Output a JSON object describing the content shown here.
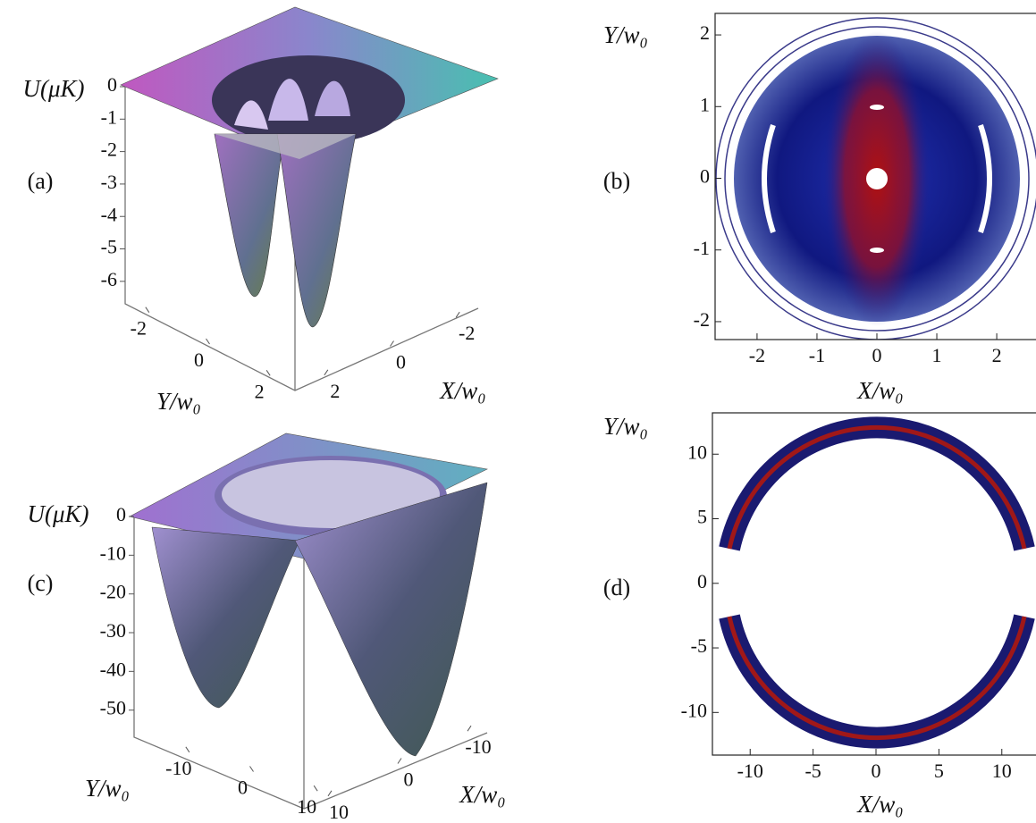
{
  "chart_data": [
    {
      "type": "surface",
      "panel_label": "(a)",
      "z_label": "U(μK)",
      "y_label": "Y/w₀",
      "x_label": "X/w₀",
      "zlim": [
        -6.5,
        0
      ],
      "zticks": [
        0,
        -1,
        -2,
        -3,
        -4,
        -5,
        -6
      ],
      "ylim": [
        -3,
        3
      ],
      "yticks": [
        -2,
        0,
        2
      ],
      "xlim": [
        -3,
        3
      ],
      "xticks": [
        -2,
        0,
        2
      ]
    },
    {
      "type": "contour",
      "panel_label": "(b)",
      "y_label": "Y/w₀",
      "x_label": "X/w₀",
      "xlim": [
        -2.7,
        2.7
      ],
      "xticks": [
        -2,
        -1,
        0,
        1,
        2
      ],
      "ylim": [
        -2.25,
        2.3
      ],
      "yticks": [
        -2,
        -1,
        0,
        1,
        2
      ]
    },
    {
      "type": "surface",
      "panel_label": "(c)",
      "z_label": "U(μK)",
      "y_label": "Y/w₀",
      "x_label": "X/w₀",
      "zlim": [
        -57,
        0
      ],
      "zticks": [
        0,
        -10,
        -20,
        -30,
        -40,
        -50
      ],
      "ylim": [
        -15,
        15
      ],
      "yticks": [
        -10,
        0,
        10
      ],
      "xlim": [
        -15,
        15
      ],
      "xticks": [
        -10,
        0,
        10
      ]
    },
    {
      "type": "contour",
      "panel_label": "(d)",
      "y_label": "Y/w₀",
      "x_label": "X/w₀",
      "xlim": [
        -13,
        13
      ],
      "xticks": [
        -10,
        -5,
        0,
        5,
        10
      ],
      "ylim": [
        -13.3,
        13.2
      ],
      "yticks": [
        -10,
        -5,
        0,
        5,
        10
      ]
    }
  ]
}
